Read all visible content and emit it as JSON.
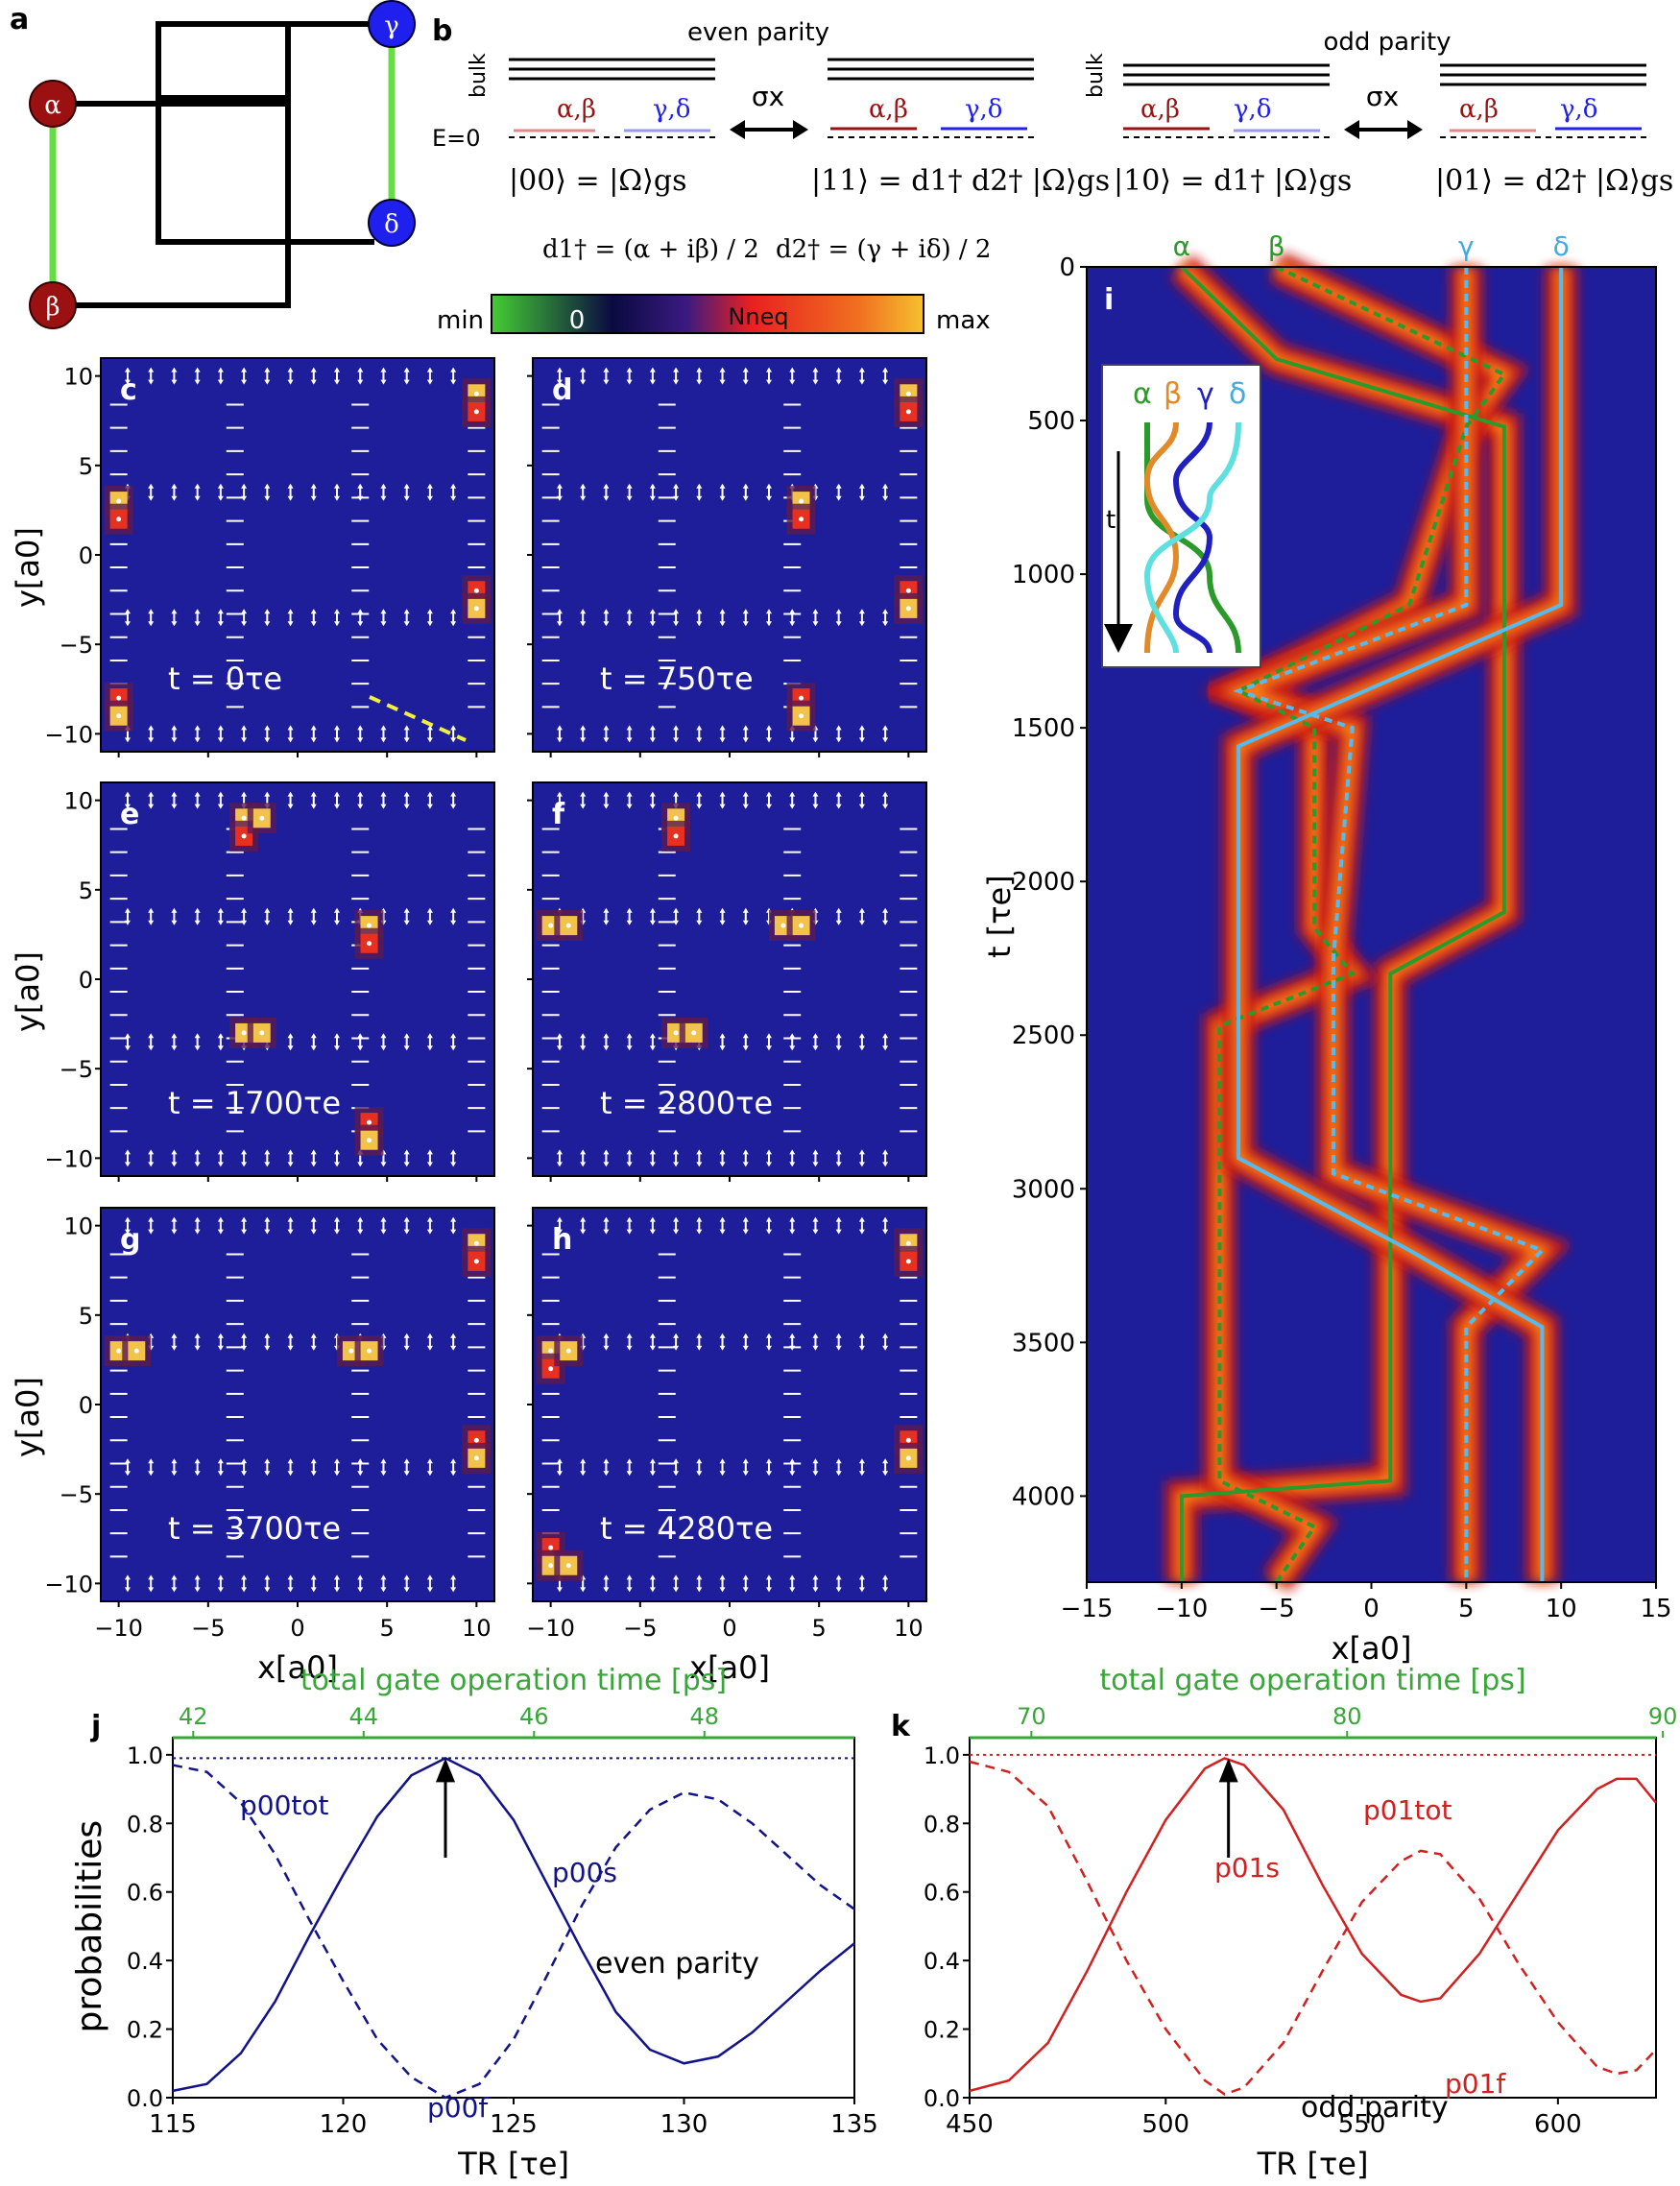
{
  "panel_labels": {
    "a": "a",
    "b": "b",
    "c": "c",
    "d": "d",
    "e": "e",
    "f": "f",
    "g": "g",
    "h": "h",
    "i": "i",
    "j": "j",
    "k": "k"
  },
  "network": {
    "nodes": [
      "α",
      "β",
      "γ",
      "δ"
    ],
    "colors": {
      "red_node": "#9b1111",
      "blue_node": "#2020ee",
      "green_link": "#66dd44"
    }
  },
  "level_diagram": {
    "even_title": "even parity",
    "odd_title": "odd parity",
    "bulk_label": "bulk",
    "zero_label": "E=0",
    "sigma": "σx",
    "pair_ab": "α,β",
    "pair_gd": "γ,δ",
    "states": [
      "|00⟩ = |Ω⟩gs",
      "|11⟩ = d1† d2† |Ω⟩gs",
      "|10⟩ = d1† |Ω⟩gs",
      "|01⟩ = d2† |Ω⟩gs"
    ],
    "d1_def": "d1† = (α + iβ) / 2",
    "d2_def": "d2† = (γ + iδ) / 2"
  },
  "colorbar": {
    "min": "min",
    "zero": "0",
    "label": "Nneq",
    "max": "max"
  },
  "snapshots": [
    {
      "id": "c",
      "time": "t = 0τe"
    },
    {
      "id": "d",
      "time": "t = 750τe"
    },
    {
      "id": "e",
      "time": "t = 1700τe"
    },
    {
      "id": "f",
      "time": "t = 2800τe"
    },
    {
      "id": "g",
      "time": "t = 3700τe"
    },
    {
      "id": "h",
      "time": "t = 4280τe"
    }
  ],
  "snapshot_axes": {
    "xlabel": "x[a0]",
    "ylabel": "y[a0]",
    "xticks": [
      "−10",
      "−5",
      "0",
      "5",
      "10"
    ],
    "yticks": [
      "10",
      "5",
      "0",
      "−5",
      "−10"
    ]
  },
  "panel_i": {
    "xlabel": "x[a0]",
    "ylabel": "t [τe]",
    "xticks": [
      "−15",
      "−10",
      "−5",
      "0",
      "5",
      "10",
      "15"
    ],
    "yticks": [
      "0",
      "500",
      "1000",
      "1500",
      "2000",
      "2500",
      "3000",
      "3500",
      "4000"
    ],
    "top_labels": [
      "α",
      "β",
      "γ",
      "δ"
    ],
    "inset_labels": [
      "α",
      "β",
      "γ",
      "δ"
    ],
    "inset_arrow": "t"
  },
  "chart_data": [
    {
      "type": "line",
      "id": "j",
      "title": "total gate operation time [ps]",
      "top_ticks": [
        "42",
        "44",
        "46",
        "48"
      ],
      "xlabel": "TR [τe]",
      "ylabel": "probabilities",
      "xlim": [
        115,
        135
      ],
      "ylim": [
        0.0,
        1.05
      ],
      "xticks": [
        115,
        120,
        125,
        130,
        135
      ],
      "yticks": [
        0.0,
        0.2,
        0.4,
        0.6,
        0.8,
        1.0
      ],
      "x": [
        115,
        116,
        117,
        118,
        119,
        120,
        121,
        122,
        123,
        124,
        125,
        126,
        127,
        128,
        129,
        130,
        131,
        132,
        133,
        134,
        135
      ],
      "series": [
        {
          "name": "p_s_00",
          "values": [
            0.02,
            0.04,
            0.13,
            0.28,
            0.47,
            0.65,
            0.82,
            0.94,
            0.99,
            0.94,
            0.81,
            0.62,
            0.43,
            0.25,
            0.14,
            0.1,
            0.12,
            0.19,
            0.28,
            0.37,
            0.45
          ]
        },
        {
          "name": "p_f_00",
          "values": [
            0.97,
            0.95,
            0.86,
            0.71,
            0.52,
            0.34,
            0.17,
            0.06,
            0.0,
            0.04,
            0.17,
            0.36,
            0.56,
            0.73,
            0.84,
            0.89,
            0.87,
            0.8,
            0.71,
            0.62,
            0.55
          ]
        },
        {
          "name": "p_tot_00",
          "values": [
            0.99,
            0.99,
            0.99,
            0.99,
            0.99,
            0.99,
            0.99,
            0.99,
            0.99,
            0.99,
            0.99,
            0.99,
            0.99,
            0.99,
            0.99,
            0.99,
            0.99,
            0.99,
            0.99,
            0.99,
            0.99
          ]
        }
      ],
      "labels": {
        "ps": "p00s",
        "pf": "p00f",
        "ptot": "p00tot",
        "parity": "even parity"
      },
      "arrow_x": 123,
      "color": "#12128a"
    },
    {
      "type": "line",
      "id": "k",
      "title": "total gate operation time [ps]",
      "top_ticks": [
        "70",
        "80",
        "90"
      ],
      "xlabel": "TR [τe]",
      "ylabel": "probabilities",
      "xlim": [
        450,
        625
      ],
      "ylim": [
        0.0,
        1.05
      ],
      "xticks": [
        450,
        500,
        550,
        600
      ],
      "yticks": [
        0.0,
        0.2,
        0.4,
        0.6,
        0.8,
        1.0
      ],
      "x": [
        450,
        460,
        470,
        480,
        490,
        500,
        510,
        515,
        520,
        530,
        540,
        550,
        560,
        565,
        570,
        580,
        590,
        600,
        610,
        615,
        620,
        625
      ],
      "series": [
        {
          "name": "p_s_01",
          "values": [
            0.02,
            0.05,
            0.16,
            0.37,
            0.6,
            0.81,
            0.96,
            0.99,
            0.97,
            0.84,
            0.62,
            0.42,
            0.3,
            0.28,
            0.29,
            0.42,
            0.6,
            0.78,
            0.9,
            0.93,
            0.93,
            0.86
          ]
        },
        {
          "name": "p_f_01",
          "values": [
            0.98,
            0.95,
            0.85,
            0.63,
            0.4,
            0.2,
            0.05,
            0.01,
            0.03,
            0.16,
            0.37,
            0.57,
            0.69,
            0.72,
            0.71,
            0.58,
            0.39,
            0.22,
            0.09,
            0.07,
            0.08,
            0.14
          ]
        },
        {
          "name": "p_tot_01",
          "values": [
            1.0,
            1.0,
            1.0,
            1.0,
            1.0,
            1.0,
            1.0,
            1.0,
            1.0,
            1.0,
            1.0,
            1.0,
            1.0,
            1.0,
            1.0,
            1.0,
            1.0,
            1.0,
            1.0,
            1.0,
            1.0,
            1.0
          ]
        }
      ],
      "labels": {
        "ps": "p01s",
        "pf": "p01f",
        "ptot": "p01tot",
        "parity": "odd parity"
      },
      "arrow_x": 516,
      "color": "#d22020"
    }
  ]
}
